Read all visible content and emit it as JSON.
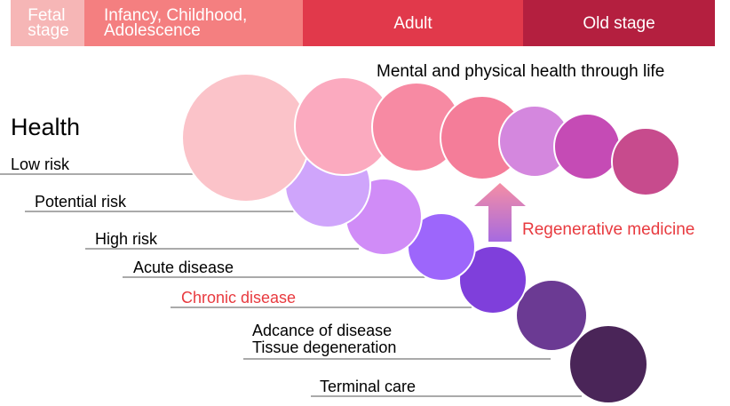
{
  "stages": [
    {
      "lines": [
        "Fetal",
        "stage"
      ],
      "color": "#f6b6b6"
    },
    {
      "lines": [
        "Infancy, Childhood,",
        "Adolescence"
      ],
      "color": "#f47f80"
    },
    {
      "lines": [
        "Adult"
      ],
      "color": "#e1394b"
    },
    {
      "lines": [
        "Old stage"
      ],
      "color": "#b41f3f"
    }
  ],
  "headline": "Mental and physical health through life",
  "health_title": "Health",
  "levels": {
    "low_risk": "Low risk",
    "potential_risk": "Potential risk",
    "high_risk": "High risk",
    "acute_disease": "Acute disease",
    "chronic_disease": "Chronic disease",
    "advance_of_disease": "Adcance of disease",
    "tissue_degeneration": "Tissue degeneration",
    "terminal_care": "Terminal care"
  },
  "regenerative_medicine": "Regenerative medicine",
  "colors": {
    "accent_red": "#e83a3f",
    "healthy_circles": [
      "#fbc3c9",
      "#fbaabf",
      "#f78aa3",
      "#f47d99",
      "#d487de",
      "#c54bb5",
      "#c74b8d"
    ],
    "disease_circles": [
      "#cfa5fb",
      "#d08cf7",
      "#9d66fb",
      "#7f3fdb",
      "#6b3a93",
      "#4a2558"
    ],
    "arrow_top": "#f58ea4",
    "arrow_bottom": "#a66ae0"
  }
}
